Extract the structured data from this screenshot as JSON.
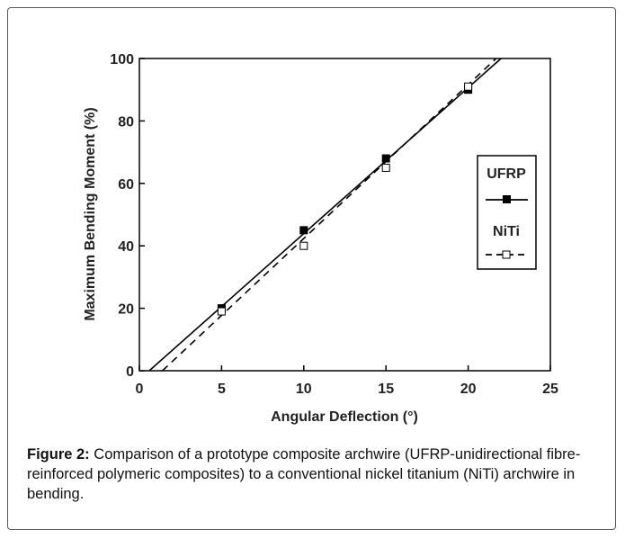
{
  "chart_data": {
    "type": "scatter",
    "xlabel": "Angular Deflection (°)",
    "ylabel": "Maximum Bending Moment (%)",
    "xlim": [
      0,
      25
    ],
    "ylim": [
      0,
      100
    ],
    "xticks": [
      0,
      5,
      10,
      15,
      20,
      25
    ],
    "yticks": [
      0,
      20,
      40,
      60,
      80,
      100
    ],
    "grid": false,
    "legend_position": "right",
    "series": [
      {
        "name": "UFRP",
        "marker": "filled-square",
        "line_style": "solid",
        "color": "#000000",
        "points": [
          {
            "x": 5,
            "y": 20
          },
          {
            "x": 10,
            "y": 45
          },
          {
            "x": 15,
            "y": 68
          },
          {
            "x": 20,
            "y": 90
          }
        ],
        "fit_line": {
          "x": [
            0.6,
            22
          ],
          "y": [
            0,
            100
          ]
        }
      },
      {
        "name": "NiTi",
        "marker": "open-square",
        "line_style": "dashed",
        "color": "#000000",
        "points": [
          {
            "x": 5,
            "y": 19
          },
          {
            "x": 10,
            "y": 40
          },
          {
            "x": 15,
            "y": 65
          },
          {
            "x": 20,
            "y": 91
          }
        ],
        "fit_line": {
          "x": [
            1.4,
            21.7
          ],
          "y": [
            0,
            100
          ]
        }
      }
    ]
  },
  "caption": {
    "label": "Figure 2:",
    "text": " Comparison of a prototype composite archwire (UFRP-unidirectional fibre-reinforced polymeric composites) to a conventional nickel titanium (NiTi) archwire in bending."
  }
}
